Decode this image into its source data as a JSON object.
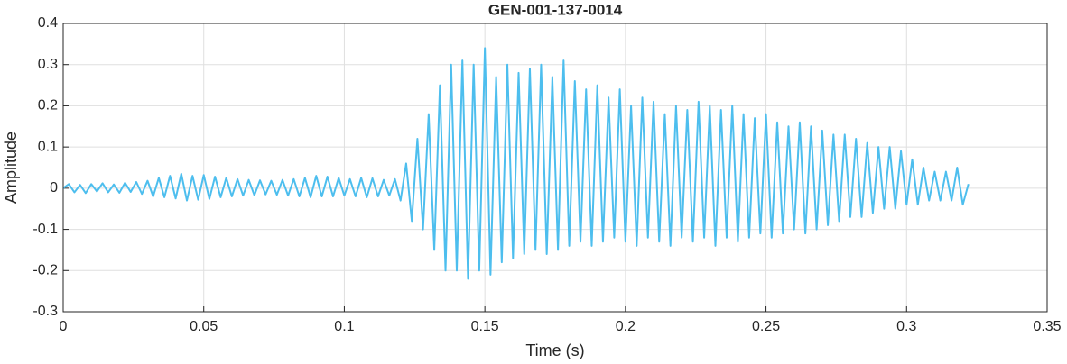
{
  "chart_data": {
    "type": "line",
    "title": "GEN-001-137-0014",
    "x_label": "Time (s)",
    "y_label": "Amplitude",
    "color": "#4dbeee",
    "grid": true,
    "xlim": [
      0,
      0.35
    ],
    "ylim": [
      -0.3,
      0.4
    ],
    "xticks": [
      0,
      0.05,
      0.1,
      0.15,
      0.2,
      0.25,
      0.3,
      0.35
    ],
    "yticks": [
      -0.3,
      -0.2,
      -0.1,
      0,
      0.1,
      0.2,
      0.3,
      0.4
    ],
    "x": [
      0,
      0.002,
      0.004,
      0.006,
      0.008,
      0.01,
      0.012,
      0.014,
      0.016,
      0.018,
      0.02,
      0.022,
      0.024,
      0.026,
      0.028,
      0.03,
      0.032,
      0.034,
      0.036,
      0.038,
      0.04,
      0.042,
      0.044,
      0.046,
      0.048,
      0.05,
      0.052,
      0.054,
      0.056,
      0.058,
      0.06,
      0.062,
      0.064,
      0.066,
      0.068,
      0.07,
      0.072,
      0.074,
      0.076,
      0.078,
      0.08,
      0.082,
      0.084,
      0.086,
      0.088,
      0.09,
      0.092,
      0.094,
      0.096,
      0.098,
      0.1,
      0.102,
      0.104,
      0.106,
      0.108,
      0.11,
      0.112,
      0.114,
      0.116,
      0.118,
      0.12,
      0.122,
      0.124,
      0.126,
      0.128,
      0.13,
      0.132,
      0.134,
      0.136,
      0.138,
      0.14,
      0.142,
      0.144,
      0.146,
      0.148,
      0.15,
      0.152,
      0.154,
      0.156,
      0.158,
      0.16,
      0.162,
      0.164,
      0.166,
      0.168,
      0.17,
      0.172,
      0.174,
      0.176,
      0.178,
      0.18,
      0.182,
      0.184,
      0.186,
      0.188,
      0.19,
      0.192,
      0.194,
      0.196,
      0.198,
      0.2,
      0.202,
      0.204,
      0.206,
      0.208,
      0.21,
      0.212,
      0.214,
      0.216,
      0.218,
      0.22,
      0.222,
      0.224,
      0.226,
      0.228,
      0.23,
      0.232,
      0.234,
      0.236,
      0.238,
      0.24,
      0.242,
      0.244,
      0.246,
      0.248,
      0.25,
      0.252,
      0.254,
      0.256,
      0.258,
      0.26,
      0.262,
      0.264,
      0.266,
      0.268,
      0.27,
      0.272,
      0.274,
      0.276,
      0.278,
      0.28,
      0.282,
      0.284,
      0.286,
      0.288,
      0.29,
      0.292,
      0.294,
      0.296,
      0.298,
      0.3,
      0.302,
      0.304,
      0.306,
      0.308,
      0.31,
      0.312,
      0.314,
      0.316,
      0.318,
      0.32,
      0.322
    ],
    "values": [
      0,
      0.01,
      -0.01,
      0.008,
      -0.012,
      0.01,
      -0.008,
      0.012,
      -0.01,
      0.009,
      -0.011,
      0.013,
      -0.009,
      0.015,
      -0.014,
      0.018,
      -0.02,
      0.025,
      -0.022,
      0.03,
      -0.025,
      0.035,
      -0.03,
      0.03,
      -0.028,
      0.032,
      -0.026,
      0.028,
      -0.022,
      0.025,
      -0.02,
      0.022,
      -0.018,
      0.02,
      -0.017,
      0.019,
      -0.015,
      0.018,
      -0.016,
      0.02,
      -0.018,
      0.022,
      -0.02,
      0.025,
      -0.022,
      0.03,
      -0.02,
      0.028,
      -0.02,
      0.025,
      -0.018,
      0.022,
      -0.02,
      0.025,
      -0.022,
      0.024,
      -0.02,
      0.02,
      -0.018,
      0.022,
      -0.03,
      0.06,
      -0.08,
      0.12,
      -0.1,
      0.18,
      -0.15,
      0.25,
      -0.2,
      0.3,
      -0.2,
      0.31,
      -0.22,
      0.3,
      -0.2,
      0.34,
      -0.21,
      0.27,
      -0.18,
      0.3,
      -0.17,
      0.28,
      -0.16,
      0.29,
      -0.15,
      0.3,
      -0.16,
      0.27,
      -0.15,
      0.31,
      -0.14,
      0.26,
      -0.13,
      0.24,
      -0.14,
      0.25,
      -0.13,
      0.22,
      -0.12,
      0.24,
      -0.13,
      0.2,
      -0.14,
      0.22,
      -0.12,
      0.21,
      -0.13,
      0.18,
      -0.14,
      0.2,
      -0.12,
      0.19,
      -0.13,
      0.21,
      -0.12,
      0.2,
      -0.14,
      0.19,
      -0.12,
      0.2,
      -0.13,
      0.18,
      -0.12,
      0.17,
      -0.11,
      0.18,
      -0.12,
      0.16,
      -0.11,
      0.15,
      -0.1,
      0.16,
      -0.11,
      0.15,
      -0.1,
      0.14,
      -0.09,
      0.13,
      -0.08,
      0.13,
      -0.07,
      0.12,
      -0.07,
      0.11,
      -0.06,
      0.1,
      -0.05,
      0.1,
      -0.05,
      0.09,
      -0.04,
      0.07,
      -0.04,
      0.05,
      -0.03,
      0.04,
      -0.03,
      0.04,
      -0.03,
      0.05,
      -0.04,
      0.01
    ]
  }
}
